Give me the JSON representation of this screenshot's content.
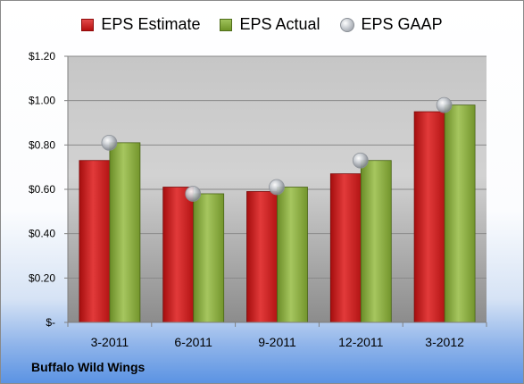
{
  "legend": {
    "estimate": "EPS Estimate",
    "actual": "EPS Actual",
    "gaap": "EPS GAAP"
  },
  "company": "Buffalo Wild Wings",
  "chart_data": {
    "type": "bar",
    "categories": [
      "3-2011",
      "6-2011",
      "9-2011",
      "12-2011",
      "3-2012"
    ],
    "series": [
      {
        "name": "EPS Estimate",
        "values": [
          0.73,
          0.61,
          0.59,
          0.67,
          0.95
        ],
        "color": "#c41a1a"
      },
      {
        "name": "EPS Actual",
        "values": [
          0.81,
          0.58,
          0.61,
          0.73,
          0.98
        ],
        "color": "#86a83c"
      },
      {
        "name": "EPS GAAP",
        "values": [
          0.81,
          0.58,
          0.61,
          0.73,
          0.98
        ],
        "marker": "sphere",
        "color": "#b0b5bc"
      }
    ],
    "y_ticks": [
      "$-",
      "$0.20",
      "$0.40",
      "$0.60",
      "$0.80",
      "$1.00",
      "$1.20"
    ],
    "ylim": [
      0,
      1.2
    ],
    "grid": true,
    "legend_position": "top"
  }
}
